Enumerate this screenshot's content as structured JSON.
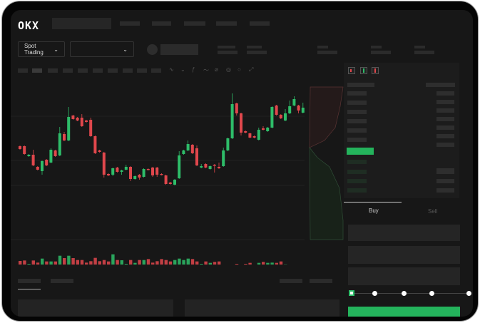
{
  "header": {
    "logo": "OKX"
  },
  "market": {
    "mode_label": "Spot Trading",
    "mode_chevron": "chevron-down-icon",
    "pair_chevron": "chevron-down-icon"
  },
  "toolbar": {
    "icons": [
      "line-style-icon",
      "indicator-icon",
      "formula-icon",
      "wave-icon",
      "pencil-icon",
      "target-icon",
      "circle-icon",
      "fullscreen-icon"
    ]
  },
  "orderbook": {
    "view_icons": [
      "book-both-icon",
      "book-bids-icon",
      "book-asks-icon"
    ]
  },
  "trade": {
    "tabs": [
      {
        "label": "Buy",
        "active": true
      },
      {
        "label": "Sell",
        "active": false
      }
    ],
    "slider_value": 0,
    "slider_stops": 5
  },
  "colors": {
    "up": "#2ebd69",
    "down": "#e0474c",
    "buy_button": "#24b35c"
  },
  "chart_data": {
    "type": "candlestick",
    "candles": [
      [
        57,
        53,
        58,
        52
      ],
      [
        57,
        46,
        58,
        45
      ],
      [
        43,
        45,
        46,
        42
      ],
      [
        45,
        30,
        52,
        29
      ],
      [
        28,
        24,
        29,
        23
      ],
      [
        22,
        36,
        37,
        17
      ],
      [
        38,
        30,
        39,
        29
      ],
      [
        34,
        52,
        54,
        33
      ],
      [
        51,
        43,
        52,
        42
      ],
      [
        44,
        75,
        84,
        43
      ],
      [
        74,
        65,
        77,
        64
      ],
      [
        65,
        98,
        112,
        64
      ],
      [
        100,
        95,
        101,
        94
      ],
      [
        97,
        93,
        98,
        92
      ],
      [
        97,
        85,
        102,
        84
      ],
      [
        93,
        91,
        94,
        90
      ],
      [
        94,
        71,
        97,
        70
      ],
      [
        71,
        47,
        72,
        46
      ],
      [
        51,
        49,
        52,
        48
      ],
      [
        48,
        17,
        49,
        13
      ],
      [
        18,
        16,
        19,
        15
      ],
      [
        17,
        26,
        27,
        15
      ],
      [
        27,
        21,
        28,
        20
      ],
      [
        21,
        23,
        24,
        17
      ],
      [
        24,
        28,
        31,
        23
      ],
      [
        28,
        11,
        29,
        8
      ],
      [
        11,
        15,
        16,
        10
      ],
      [
        17,
        13,
        18,
        10
      ],
      [
        14,
        25,
        26,
        13
      ],
      [
        25,
        24,
        26,
        23
      ],
      [
        27,
        16,
        28,
        14
      ],
      [
        27,
        17,
        28,
        14
      ],
      [
        18,
        17,
        19,
        16
      ],
      [
        16,
        4,
        17,
        3
      ],
      [
        6,
        4,
        7,
        3
      ],
      [
        3,
        10,
        11,
        2
      ],
      [
        12,
        44,
        50,
        11
      ],
      [
        46,
        51,
        52,
        45
      ],
      [
        51,
        60,
        65,
        50
      ],
      [
        59,
        47,
        60,
        46
      ],
      [
        54,
        30,
        58,
        29
      ],
      [
        27,
        29,
        32,
        26
      ],
      [
        32,
        27,
        33,
        26
      ],
      [
        25,
        29,
        30,
        24
      ],
      [
        31,
        30,
        32,
        20
      ],
      [
        28,
        26,
        34,
        25
      ],
      [
        29,
        51,
        55,
        28
      ],
      [
        51,
        68,
        69,
        50
      ],
      [
        68,
        116,
        131,
        67
      ],
      [
        117,
        103,
        118,
        100
      ],
      [
        103,
        76,
        104,
        72
      ],
      [
        78,
        76,
        79,
        75
      ],
      [
        75,
        69,
        76,
        68
      ],
      [
        71,
        69,
        72,
        68
      ],
      [
        66,
        80,
        83,
        65
      ],
      [
        82,
        80,
        85,
        79
      ],
      [
        78,
        83,
        84,
        77
      ],
      [
        83,
        112,
        113,
        82
      ],
      [
        114,
        101,
        115,
        100
      ],
      [
        101,
        96,
        102,
        95
      ],
      [
        93,
        103,
        109,
        92
      ],
      [
        103,
        113,
        121,
        102
      ],
      [
        114,
        123,
        127,
        113
      ],
      [
        114,
        107,
        115,
        103
      ],
      [
        104,
        111,
        118,
        103
      ]
    ],
    "volume": [
      36,
      38,
      24,
      38,
      29,
      46,
      34,
      34,
      34,
      58,
      48,
      58,
      48,
      40,
      40,
      29,
      35,
      49,
      35,
      40,
      34,
      64,
      40,
      39,
      24,
      40,
      28,
      40,
      40,
      44,
      29,
      35,
      44,
      40,
      34,
      40,
      46,
      40,
      46,
      44,
      34,
      24,
      34,
      28,
      32,
      34,
      9,
      9,
      20,
      24,
      21,
      24,
      28,
      20,
      28,
      32,
      28,
      29,
      28,
      34,
      22,
      20,
      14,
      10,
      16
    ],
    "grid": true
  }
}
